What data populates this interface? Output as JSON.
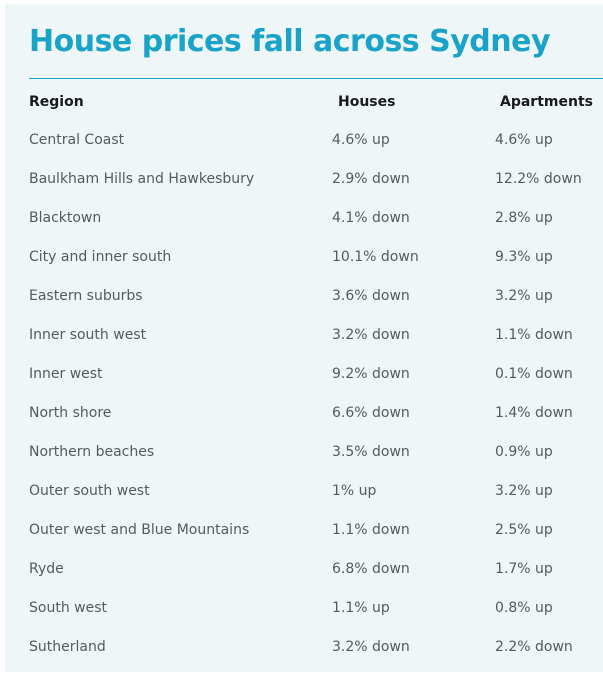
{
  "title": "House prices fall across Sydney",
  "colors": {
    "title": "#1aa3c8",
    "panel_background": "#eef6f8",
    "body_text": "#555a5e",
    "header_text": "#1a1a1a"
  },
  "chart_data": {
    "type": "table",
    "title": "House prices fall across Sydney",
    "columns": [
      "Region",
      "Houses",
      "Apartments"
    ],
    "rows": [
      {
        "region": "Central Coast",
        "houses": "4.6% up",
        "apartments": "4.6% up"
      },
      {
        "region": "Baulkham Hills and Hawkesbury",
        "houses": "2.9% down",
        "apartments": "12.2% down"
      },
      {
        "region": "Blacktown",
        "houses": "4.1% down",
        "apartments": "2.8% up"
      },
      {
        "region": "City and inner south",
        "houses": "10.1% down",
        "apartments": "9.3% up"
      },
      {
        "region": "Eastern suburbs",
        "houses": "3.6% down",
        "apartments": "3.2% up"
      },
      {
        "region": "Inner south west",
        "houses": "3.2% down",
        "apartments": "1.1% down"
      },
      {
        "region": "Inner west",
        "houses": "9.2% down",
        "apartments": "0.1% down"
      },
      {
        "region": "North shore",
        "houses": "6.6% down",
        "apartments": "1.4% down"
      },
      {
        "region": "Northern beaches",
        "houses": "3.5% down",
        "apartments": "0.9% up"
      },
      {
        "region": "Outer south west",
        "houses": "1% up",
        "apartments": "3.2% up"
      },
      {
        "region": "Outer west and Blue Mountains",
        "houses": "1.1% down",
        "apartments": "2.5% up"
      },
      {
        "region": "Ryde",
        "houses": "6.8% down",
        "apartments": "1.7% up"
      },
      {
        "region": "South west",
        "houses": "1.1% up",
        "apartments": "0.8% up"
      },
      {
        "region": "Sutherland",
        "houses": "3.2% down",
        "apartments": "2.2% down"
      }
    ]
  }
}
